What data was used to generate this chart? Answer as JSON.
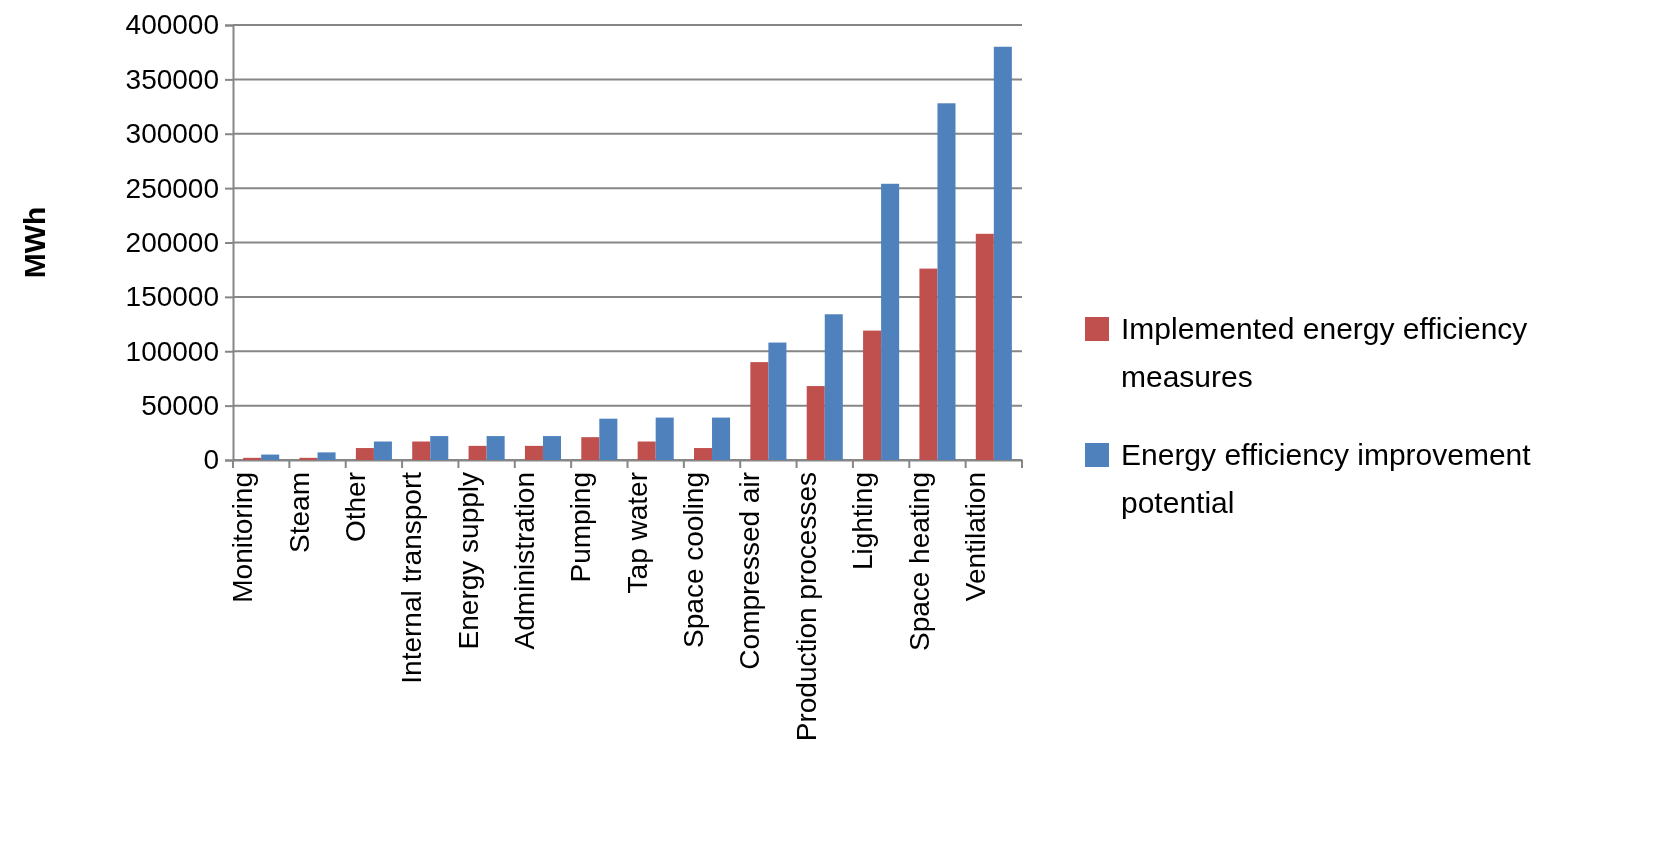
{
  "chart_data": {
    "type": "bar",
    "ylabel": "MWh",
    "categories": [
      "Monitoring",
      "Steam",
      "Other",
      "Internal transport",
      "Energy supply",
      "Administration",
      "Pumping",
      "Tap water",
      "Space cooling",
      "Compressed air",
      "Production processes",
      "Lighting",
      "Space heating",
      "Ventilation"
    ],
    "series": [
      {
        "name": "Implemented energy efficiency measures",
        "color": "#c0504d",
        "values": [
          2000,
          2000,
          11000,
          17000,
          13000,
          13000,
          21000,
          17000,
          11000,
          90000,
          68000,
          119000,
          176000,
          208000
        ]
      },
      {
        "name": "Energy efficiency improvement potential",
        "color": "#4f81bd",
        "values": [
          5000,
          7000,
          17000,
          22000,
          22000,
          22000,
          38000,
          39000,
          39000,
          108000,
          134000,
          254000,
          328000,
          380000
        ]
      }
    ],
    "ylim": [
      0,
      400000
    ],
    "yticks": [
      0,
      50000,
      100000,
      150000,
      200000,
      250000,
      300000,
      350000,
      400000
    ],
    "grid": "y",
    "legend": "right"
  }
}
